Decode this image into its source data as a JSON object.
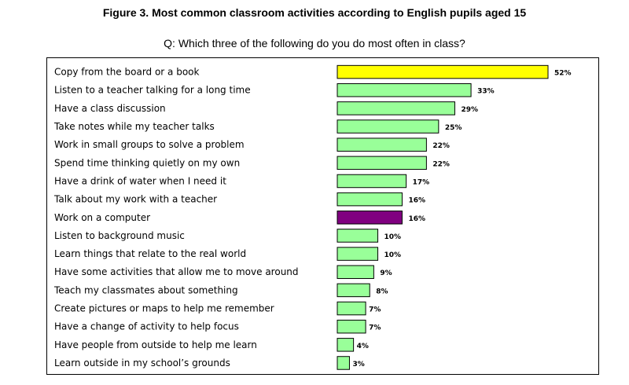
{
  "title": "Figure 3.  Most common classroom activities according to English pupils aged 15",
  "subtitle": "Q: Which three of the following do you do most often in class?",
  "colors": {
    "default_bar": "#99ff99",
    "highlight_top": "#ffff00",
    "highlight_computer": "#800080",
    "bar_stroke": "#000000"
  },
  "chart_data": {
    "type": "bar",
    "orientation": "horizontal",
    "title": "Figure 3.  Most common classroom activities according to English pupils aged 15",
    "subtitle": "Q: Which three of the following do you do most often in class?",
    "xlabel": "",
    "ylabel": "",
    "grid": false,
    "legend": "none",
    "categories": [
      "Copy from the board or a book",
      "Listen to a teacher talking for a long  time",
      "Have a class discussion",
      "Take notes while my teacher talks",
      "Work in small groups to solve a problem",
      "Spend time thinking quietly on my own",
      "Have a drink of water when I need  it",
      "Talk about my work with a teacher",
      "Work on a computer",
      "Listen to background music",
      "Learn things that relate to the real world",
      "Have some activities that allow me to move around",
      "Teach my classmates about something",
      "Create pictures or maps to help me remember",
      "Have a change of activity to help focus",
      "Have people from outside to help me  learn",
      "Learn outside in my school’s grounds"
    ],
    "values": [
      52,
      33,
      29,
      25,
      22,
      22,
      17,
      16,
      16,
      10,
      10,
      9,
      8,
      7,
      7,
      4,
      3
    ],
    "value_labels": [
      "52%",
      "33%",
      "29%",
      "25%",
      "22%",
      "22%",
      "17%",
      "16%",
      "16%",
      "10%",
      "10%",
      "9%",
      "8%",
      "7%",
      "7%",
      "4%",
      "3%"
    ],
    "highlights": {
      "0": "yellow",
      "8": "purple"
    }
  }
}
